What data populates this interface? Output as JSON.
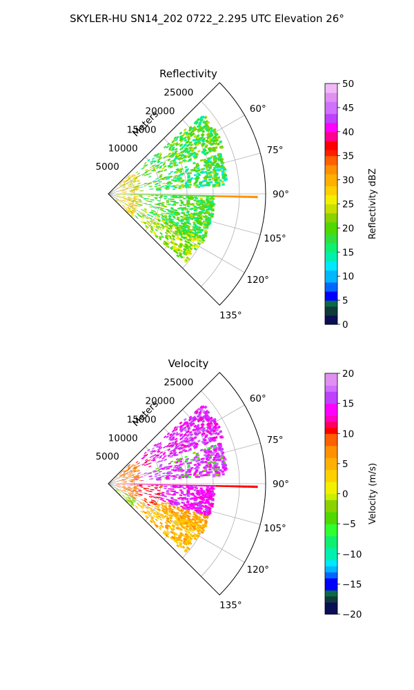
{
  "figure": {
    "suptitle": "SKYLER-HU  SN14_202  0722_2.295 UTC Elevation 26°"
  },
  "chart_data": [
    {
      "type": "heatmap",
      "subtype": "polar-sector",
      "title": "Reflectivity",
      "radial_axis_label": "Meters",
      "radial_ticks": [
        "5000",
        "10000",
        "15000",
        "20000",
        "25000"
      ],
      "radial_range": [
        0,
        30000
      ],
      "angle_ticks": [
        "60°",
        "75°",
        "90°",
        "105°",
        "120°",
        "135°"
      ],
      "angle_range_deg": [
        45,
        135
      ],
      "grid": true,
      "colorbar": {
        "label": "Reflectivity dBZ",
        "range": [
          0,
          50
        ],
        "ticks": [
          "0",
          "5",
          "10",
          "15",
          "20",
          "25",
          "30",
          "35",
          "40",
          "45",
          "50"
        ]
      }
    },
    {
      "type": "heatmap",
      "subtype": "polar-sector",
      "title": "Velocity",
      "radial_axis_label": "Meters",
      "radial_ticks": [
        "5000",
        "10000",
        "15000",
        "20000",
        "25000"
      ],
      "radial_range": [
        0,
        30000
      ],
      "angle_ticks": [
        "60°",
        "75°",
        "90°",
        "105°",
        "120°",
        "135°"
      ],
      "angle_range_deg": [
        45,
        135
      ],
      "grid": true,
      "colorbar": {
        "label": "Velocity (m/s)",
        "range": [
          -20,
          20
        ],
        "ticks": [
          "−20",
          "−15",
          "−10",
          "−5",
          "0",
          "5",
          "10",
          "15",
          "20"
        ]
      }
    }
  ]
}
